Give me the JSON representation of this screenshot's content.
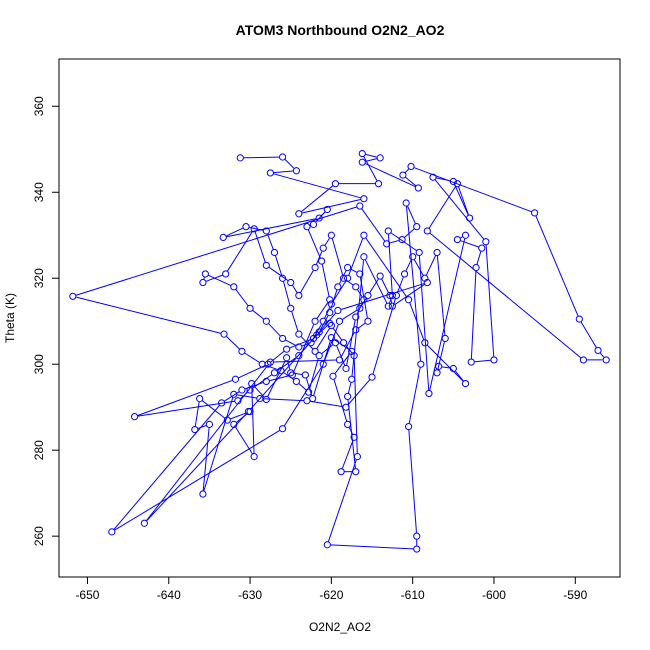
{
  "chart_data": {
    "type": "line",
    "title": "ATOM3 Northbound O2N2_AO2",
    "xlabel": "O2N2_AO2",
    "ylabel": "Theta (K)",
    "xlim": [
      -653.5,
      -584.5
    ],
    "ylim": [
      250.5,
      371
    ],
    "xticks": [
      -650,
      -640,
      -630,
      -620,
      -610,
      -600,
      -590
    ],
    "yticks": [
      260,
      280,
      300,
      320,
      340,
      360
    ],
    "grid": false,
    "series": [
      {
        "color": "#0000FF",
        "marker": "open-circle",
        "points": [
          [
            -631.2,
            348.0
          ],
          [
            -626.0,
            348.2
          ],
          [
            -624.3,
            345.0
          ],
          [
            -627.5,
            344.5
          ],
          [
            -616.0,
            338.5
          ],
          [
            -624.0,
            335.0
          ],
          [
            -619.5,
            342.0
          ],
          [
            -614.2,
            342.0
          ],
          [
            -616.2,
            349.0
          ],
          [
            -614.0,
            348.0
          ],
          [
            -616.2,
            347.0
          ],
          [
            -609.3,
            341.0
          ],
          [
            -611.2,
            344.0
          ],
          [
            -610.2,
            346.0
          ],
          [
            -595.0,
            335.2
          ],
          [
            -589.5,
            310.5
          ],
          [
            -587.2,
            303.2
          ],
          [
            -586.2,
            301.0
          ],
          [
            -589.0,
            301.0
          ],
          [
            -608.2,
            331.0
          ],
          [
            -604.5,
            342.0
          ],
          [
            -603.0,
            334.0
          ],
          [
            -605.0,
            342.5
          ],
          [
            -607.5,
            343.5
          ],
          [
            -601.0,
            328.5
          ],
          [
            -600.0,
            301.0
          ],
          [
            -602.8,
            300.5
          ],
          [
            -602.2,
            322.5
          ],
          [
            -601.5,
            327.0
          ],
          [
            -604.5,
            329.0
          ],
          [
            -603.5,
            330.0
          ],
          [
            -608.0,
            293.2
          ],
          [
            -609.2,
            326.0
          ],
          [
            -613.0,
            331.0
          ],
          [
            -612.5,
            316.0
          ],
          [
            -613.0,
            313.5
          ],
          [
            -616.0,
            325.0
          ],
          [
            -617.5,
            296.5
          ],
          [
            -618.0,
            292.5
          ],
          [
            -617.0,
            275.0
          ],
          [
            -618.8,
            275.0
          ],
          [
            -617.2,
            283.0
          ],
          [
            -618.0,
            286.0
          ],
          [
            -619.8,
            297.2
          ],
          [
            -617.5,
            303.0
          ],
          [
            -620.0,
            306.2
          ],
          [
            -622.3,
            292.0
          ],
          [
            -623.2,
            297.5
          ],
          [
            -625.0,
            298.0
          ],
          [
            -625.5,
            301.5
          ],
          [
            -628.0,
            291.8
          ],
          [
            -629.8,
            295.5
          ],
          [
            -629.5,
            278.5
          ],
          [
            -632.0,
            286.0
          ],
          [
            -630.0,
            289.0
          ],
          [
            -632.8,
            287.0
          ],
          [
            -636.2,
            292.0
          ],
          [
            -636.8,
            284.8
          ],
          [
            -635.0,
            286.0
          ],
          [
            -635.8,
            269.8
          ],
          [
            -632.0,
            293.0
          ],
          [
            -628.8,
            292.0
          ],
          [
            -623.0,
            291.5
          ],
          [
            -618.2,
            290.0
          ],
          [
            -615.0,
            297.0
          ],
          [
            -612.0,
            316.0
          ],
          [
            -611.0,
            321.0
          ],
          [
            -610.0,
            325.0
          ],
          [
            -608.5,
            320.0
          ],
          [
            -607.0,
            326.0
          ],
          [
            -606.0,
            306.0
          ],
          [
            -607.0,
            298.0
          ],
          [
            -606.8,
            299.5
          ],
          [
            -605.0,
            299.0
          ],
          [
            -603.5,
            295.5
          ],
          [
            -608.5,
            305.0
          ],
          [
            -610.5,
            315.0
          ],
          [
            -616.0,
            330.0
          ],
          [
            -618.0,
            320.0
          ],
          [
            -620.0,
            314.0
          ],
          [
            -621.0,
            310.0
          ],
          [
            -622.5,
            305.0
          ],
          [
            -624.0,
            304.0
          ],
          [
            -626.0,
            306.0
          ],
          [
            -628.0,
            310.0
          ],
          [
            -630.0,
            313.0
          ],
          [
            -632.0,
            318.0
          ],
          [
            -635.5,
            321.0
          ],
          [
            -635.8,
            319.0
          ],
          [
            -633.0,
            321.0
          ],
          [
            -629.5,
            331.5
          ],
          [
            -628.0,
            323.0
          ],
          [
            -625.0,
            319.0
          ],
          [
            -624.0,
            316.0
          ],
          [
            -622.0,
            322.5
          ],
          [
            -621.0,
            327.0
          ],
          [
            -620.0,
            330.0
          ],
          [
            -618.5,
            320.0
          ],
          [
            -617.0,
            318.0
          ],
          [
            -616.0,
            315.0
          ],
          [
            -617.0,
            311.0
          ],
          [
            -618.2,
            299.0
          ],
          [
            -619.5,
            305.0
          ],
          [
            -621.5,
            302.0
          ],
          [
            -622.8,
            293.5
          ],
          [
            -624.3,
            296.0
          ],
          [
            -626.2,
            298.5
          ],
          [
            -628.5,
            300.0
          ],
          [
            -631.0,
            303.0
          ],
          [
            -633.2,
            307.0
          ],
          [
            -651.8,
            315.8
          ],
          [
            -616.5,
            336.8
          ],
          [
            -613.2,
            328.0
          ],
          [
            -611.3,
            329.0
          ],
          [
            -609.5,
            332.0
          ],
          [
            -610.8,
            337.5
          ],
          [
            -609.0,
            300.0
          ],
          [
            -610.5,
            285.5
          ],
          [
            -609.5,
            260.0
          ],
          [
            -609.5,
            257.0
          ],
          [
            -620.5,
            258.0
          ],
          [
            -616.8,
            278.5
          ],
          [
            -617.2,
            302.0
          ],
          [
            -618.5,
            305.0
          ],
          [
            -620.0,
            309.0
          ],
          [
            -622.0,
            303.0
          ],
          [
            -624.0,
            307.0
          ],
          [
            -625.0,
            313.0
          ],
          [
            -626.0,
            320.0
          ],
          [
            -627.0,
            326.0
          ],
          [
            -628.0,
            331.0
          ],
          [
            -630.5,
            332.0
          ],
          [
            -633.3,
            329.5
          ],
          [
            -621.5,
            334.0
          ],
          [
            -620.5,
            336.0
          ],
          [
            -622.2,
            332.5
          ],
          [
            -623.0,
            332.0
          ],
          [
            -621.2,
            324.0
          ],
          [
            -620.2,
            315.0
          ],
          [
            -622.0,
            310.0
          ],
          [
            -624.8,
            297.5
          ],
          [
            -628.0,
            296.0
          ],
          [
            -631.0,
            294.0
          ],
          [
            -633.5,
            291.0
          ],
          [
            -647.0,
            261.0
          ],
          [
            -626.0,
            285.0
          ],
          [
            -621.0,
            300.0
          ],
          [
            -619.0,
            310.0
          ],
          [
            -616.5,
            313.0
          ],
          [
            -615.5,
            316.0
          ],
          [
            -614.0,
            320.5
          ],
          [
            -612.8,
            316.0
          ],
          [
            -612.5,
            313.5
          ],
          [
            -608.2,
            319.0
          ],
          [
            -619.2,
            312.5
          ],
          [
            -621.8,
            306.8
          ],
          [
            -630.2,
            289.0
          ],
          [
            -643.0,
            263.0
          ],
          [
            -627.5,
            300.5
          ],
          [
            -619.0,
            301.0
          ],
          [
            -617.0,
            308.0
          ],
          [
            -615.5,
            310.0
          ],
          [
            -616.5,
            321.0
          ],
          [
            -618.0,
            322.5
          ],
          [
            -619.2,
            318.0
          ],
          [
            -620.2,
            312.0
          ],
          [
            -621.5,
            307.5
          ],
          [
            -624.0,
            302.0
          ],
          [
            -627.0,
            298.0
          ],
          [
            -630.0,
            294.0
          ],
          [
            -631.5,
            291.5
          ],
          [
            -644.2,
            287.8
          ],
          [
            -631.8,
            296.5
          ],
          [
            -627.8,
            300.0
          ],
          [
            -625.5,
            303.5
          ],
          [
            -622.2,
            306.0
          ],
          [
            -620.2,
            309.5
          ]
        ]
      }
    ]
  }
}
